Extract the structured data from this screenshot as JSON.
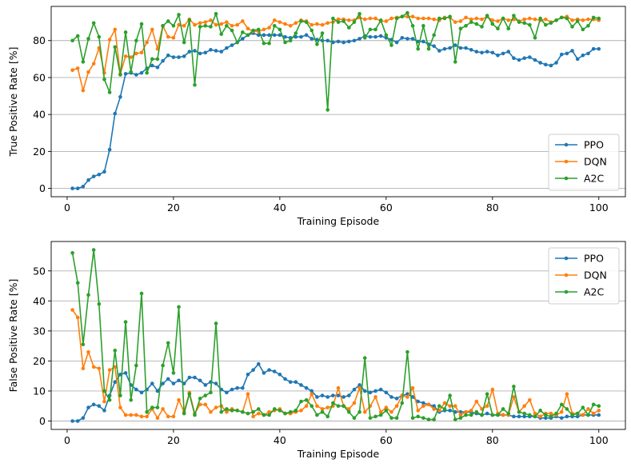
{
  "chart_data": [
    {
      "type": "line",
      "xlabel": "Training Episode",
      "ylabel": "True Positive Rate [%]",
      "xlim": [
        -3,
        105
      ],
      "ylim": [
        -4.5,
        98.5
      ],
      "xticks": [
        0,
        20,
        40,
        60,
        80,
        100
      ],
      "yticks": [
        0,
        20,
        40,
        60,
        80
      ],
      "grid": "y",
      "legend": "lower-right",
      "x": [
        1,
        2,
        3,
        4,
        5,
        6,
        7,
        8,
        9,
        10,
        11,
        12,
        13,
        14,
        15,
        16,
        17,
        18,
        19,
        20,
        21,
        22,
        23,
        24,
        25,
        26,
        27,
        28,
        29,
        30,
        31,
        32,
        33,
        34,
        35,
        36,
        37,
        38,
        39,
        40,
        41,
        42,
        43,
        44,
        45,
        46,
        47,
        48,
        49,
        50,
        51,
        52,
        53,
        54,
        55,
        56,
        57,
        58,
        59,
        60,
        61,
        62,
        63,
        64,
        65,
        66,
        67,
        68,
        69,
        70,
        71,
        72,
        73,
        74,
        75,
        76,
        77,
        78,
        79,
        80,
        81,
        82,
        83,
        84,
        85,
        86,
        87,
        88,
        89,
        90,
        91,
        92,
        93,
        94,
        95,
        96,
        97,
        98,
        99,
        100
      ],
      "series": [
        {
          "name": "PPO",
          "color": "#1f77b4",
          "values": [
            0,
            0,
            1,
            4.5,
            6.5,
            7.5,
            9,
            21,
            40.5,
            49.5,
            62,
            62.5,
            61.5,
            62.5,
            65,
            66.5,
            65.5,
            69,
            72,
            71,
            71,
            71.5,
            74,
            74.5,
            73,
            73.5,
            75,
            74.5,
            74,
            76,
            77.5,
            79,
            81,
            83,
            84,
            83,
            83,
            83,
            83,
            83,
            82,
            81.5,
            82,
            82,
            83,
            81,
            80.5,
            80,
            80,
            79,
            79.5,
            79,
            79.5,
            80,
            81,
            82.5,
            82,
            82,
            82.5,
            81.5,
            80.5,
            79,
            81.5,
            81,
            81,
            79.5,
            79.5,
            78,
            77,
            74.5,
            75.5,
            76,
            77.5,
            76,
            76,
            75,
            74,
            73.5,
            74,
            73.5,
            72,
            73,
            74,
            70.5,
            69.5,
            70.5,
            71,
            69.5,
            68,
            67,
            66.5,
            68,
            72.5,
            73,
            74.5,
            70,
            72,
            73,
            75.5,
            75.5
          ]
        },
        {
          "name": "DQN",
          "color": "#ff7f0e",
          "values": [
            64,
            65,
            53,
            63,
            67.5,
            76,
            62.5,
            80.5,
            86,
            62,
            71.5,
            71,
            73,
            73.5,
            79,
            86,
            75.5,
            88,
            82,
            81.5,
            88.5,
            88,
            91.5,
            88.5,
            89.5,
            90,
            91,
            88.5,
            89,
            90,
            88,
            88.5,
            90.5,
            86.5,
            85,
            85,
            86,
            87,
            91,
            90,
            89,
            88,
            89.5,
            91,
            90.5,
            88.5,
            89,
            88.5,
            89.5,
            90,
            91.5,
            91.5,
            91,
            91,
            92.5,
            91.5,
            92,
            92,
            90.5,
            90.5,
            92,
            92.5,
            93,
            93,
            93,
            92,
            92,
            92,
            91.5,
            91,
            92.5,
            92.5,
            90,
            90.5,
            92.5,
            91.5,
            92,
            91.5,
            93,
            91,
            90.5,
            92,
            91,
            91.5,
            90.5,
            91.5,
            92,
            91.5,
            91,
            91.5,
            90,
            91,
            92.5,
            93,
            91,
            91.5,
            91,
            91.5,
            91.5,
            91
          ]
        },
        {
          "name": "A2C",
          "color": "#2ca02c",
          "values": [
            80,
            82.5,
            68.5,
            81,
            89.5,
            82,
            59,
            52,
            76.5,
            61.5,
            84.5,
            63,
            80,
            89,
            62.5,
            70,
            70,
            88,
            90.5,
            88,
            94,
            79,
            91,
            56,
            87.5,
            88,
            87.5,
            94.5,
            83.5,
            88,
            85.5,
            79,
            84.5,
            83,
            85.5,
            86,
            78.5,
            78.5,
            88,
            86,
            79,
            80,
            84,
            90.5,
            90,
            85.5,
            78,
            84,
            42.5,
            92,
            90,
            90.5,
            87,
            90,
            94.5,
            81.5,
            86,
            86,
            91,
            83,
            77.5,
            92,
            93,
            95,
            88,
            75.5,
            88,
            75.5,
            83,
            92,
            92,
            93,
            68.5,
            86.5,
            88,
            90,
            89,
            87.5,
            93.5,
            89,
            86.5,
            92,
            86.5,
            93.5,
            90,
            89.5,
            88.5,
            81.5,
            92,
            88.5,
            89.5,
            91,
            92.5,
            92,
            87.5,
            90.5,
            86,
            88,
            92.5,
            92
          ]
        }
      ]
    },
    {
      "type": "line",
      "xlabel": "Training Episode",
      "ylabel": "False Positive Rate [%]",
      "xlim": [
        -3,
        105
      ],
      "ylim": [
        -2.8,
        59.8
      ],
      "xticks": [
        0,
        20,
        40,
        60,
        80,
        100
      ],
      "yticks": [
        0,
        10,
        20,
        30,
        40,
        50
      ],
      "grid": "y",
      "legend": "upper-right",
      "x": [
        1,
        2,
        3,
        4,
        5,
        6,
        7,
        8,
        9,
        10,
        11,
        12,
        13,
        14,
        15,
        16,
        17,
        18,
        19,
        20,
        21,
        22,
        23,
        24,
        25,
        26,
        27,
        28,
        29,
        30,
        31,
        32,
        33,
        34,
        35,
        36,
        37,
        38,
        39,
        40,
        41,
        42,
        43,
        44,
        45,
        46,
        47,
        48,
        49,
        50,
        51,
        52,
        53,
        54,
        55,
        56,
        57,
        58,
        59,
        60,
        61,
        62,
        63,
        64,
        65,
        66,
        67,
        68,
        69,
        70,
        71,
        72,
        73,
        74,
        75,
        76,
        77,
        78,
        79,
        80,
        81,
        82,
        83,
        84,
        85,
        86,
        87,
        88,
        89,
        90,
        91,
        92,
        93,
        94,
        95,
        96,
        97,
        98,
        99,
        100
      ],
      "series": [
        {
          "name": "PPO",
          "color": "#1f77b4",
          "values": [
            0,
            0,
            1,
            4.5,
            5.5,
            5,
            3.5,
            8.5,
            13,
            15.5,
            16,
            12,
            10.5,
            9.5,
            10.5,
            12.5,
            10,
            12.5,
            14,
            12.5,
            13.5,
            12.5,
            14.5,
            14.5,
            13.5,
            12,
            13,
            12.5,
            10.5,
            9.5,
            10.5,
            11,
            11,
            15.5,
            17,
            19,
            16,
            17,
            16.5,
            15.5,
            14,
            13,
            13,
            12,
            11,
            10,
            8,
            8.5,
            8,
            8.5,
            8.5,
            8,
            8.5,
            10.5,
            12,
            10,
            9.5,
            10,
            10.5,
            9.5,
            8,
            7.5,
            8.5,
            9,
            8,
            6.5,
            6,
            5.5,
            5,
            3,
            3.5,
            3.5,
            3,
            3,
            3,
            3,
            2.5,
            2,
            2.5,
            2,
            2,
            2,
            2,
            1.5,
            1.5,
            1.5,
            1.5,
            1.5,
            1,
            1,
            1,
            1.5,
            1,
            1.5,
            1.5,
            1.5,
            2,
            2,
            2,
            2
          ]
        },
        {
          "name": "DQN",
          "color": "#ff7f0e",
          "values": [
            37,
            34.5,
            17.5,
            23,
            18,
            17.5,
            6.5,
            17,
            18,
            4.5,
            2,
            2,
            2,
            1.5,
            1.5,
            4,
            1,
            4,
            1.5,
            1.5,
            7,
            3,
            9.5,
            2.5,
            5.5,
            5.5,
            3,
            4.5,
            5,
            3,
            4,
            3.5,
            3,
            9,
            1.5,
            2.5,
            2,
            3,
            3.5,
            4,
            2.5,
            2.5,
            3,
            3.5,
            5,
            9,
            5,
            4,
            4.5,
            5,
            11,
            5,
            4,
            6,
            11,
            3,
            5,
            8,
            3,
            4.5,
            3,
            5,
            8.5,
            8,
            11,
            3.5,
            5,
            5.5,
            4,
            3.5,
            6,
            5,
            5,
            2,
            3,
            3.5,
            6.5,
            4,
            5,
            10.5,
            2.5,
            2,
            2,
            8,
            3,
            5,
            7,
            2.5,
            1.5,
            2.5,
            2.5,
            2,
            3,
            9,
            2.5,
            2.5,
            2,
            4,
            2.5,
            3.5
          ]
        },
        {
          "name": "A2C",
          "color": "#2ca02c",
          "values": [
            56,
            46,
            25.5,
            42,
            57,
            39,
            10,
            7,
            23.5,
            8.5,
            33,
            7,
            18.5,
            42.5,
            3,
            4.5,
            4.5,
            18.5,
            26,
            16,
            38,
            2.5,
            9,
            2,
            7.5,
            8.5,
            9.5,
            32.5,
            3,
            4,
            3.5,
            3.5,
            3,
            2.5,
            3,
            4,
            2,
            2,
            4,
            3.5,
            2.5,
            3,
            3.5,
            6.5,
            7,
            5,
            2,
            3,
            1.5,
            6,
            5,
            5,
            3,
            1,
            3,
            21,
            1,
            1.5,
            2,
            3.5,
            1,
            1,
            6,
            23,
            1,
            1.5,
            1,
            0.5,
            0.5,
            5,
            4,
            8.5,
            0.5,
            1,
            2,
            2,
            3,
            2,
            9,
            2,
            2,
            4,
            2.5,
            11.5,
            3,
            2.5,
            2,
            1.5,
            3.5,
            2,
            1.5,
            2.5,
            5.5,
            4,
            2,
            2.5,
            4.5,
            2,
            5.5,
            5
          ]
        }
      ]
    }
  ]
}
